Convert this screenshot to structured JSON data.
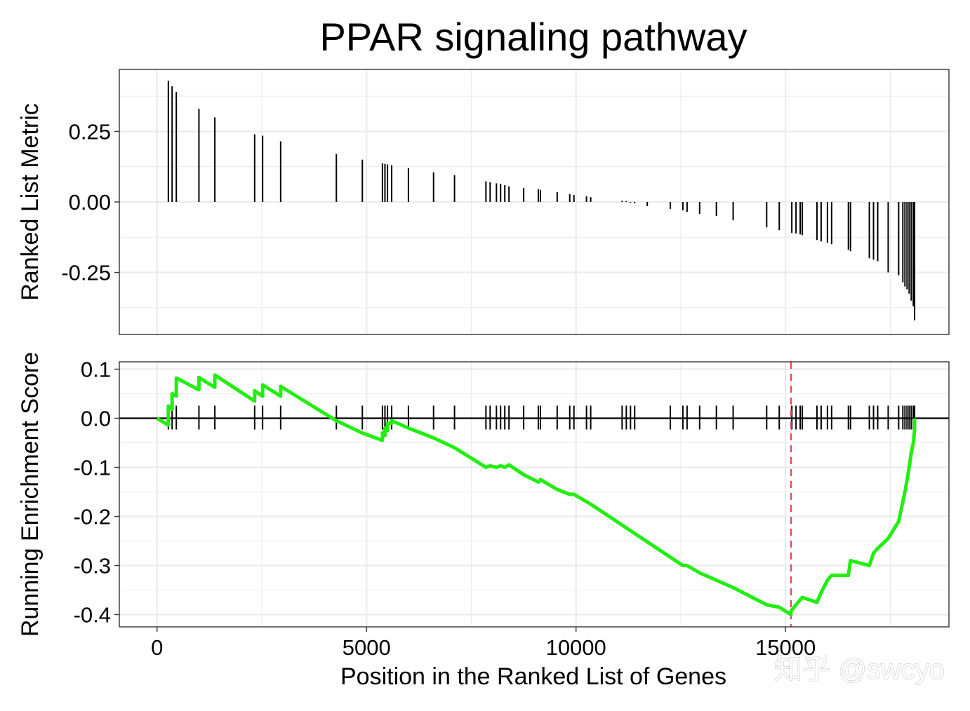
{
  "chart_data": [
    {
      "panel": "top",
      "type": "bar",
      "title": "PPAR signaling pathway",
      "xlabel": "",
      "ylabel": "Ranked List Metric",
      "xlim": [
        -900,
        18900
      ],
      "ylim": [
        -0.47,
        0.47
      ],
      "xticks": [
        0,
        5000,
        10000,
        15000
      ],
      "yticks": [
        0.25,
        0.0,
        -0.25
      ],
      "ytick_labels": [
        "0.25",
        "0.00",
        "-0.25"
      ],
      "grid": true,
      "x": [
        270,
        360,
        460,
        1000,
        1380,
        2330,
        2520,
        2950,
        4280,
        4900,
        5380,
        5440,
        5500,
        5600,
        6000,
        6600,
        7100,
        7850,
        7950,
        8100,
        8200,
        8300,
        8400,
        8750,
        9100,
        9150,
        9550,
        9850,
        9950,
        10250,
        10350,
        11100,
        11200,
        11300,
        11400,
        11700,
        12250,
        12550,
        12650,
        12950,
        13350,
        13750,
        14550,
        14850,
        15150,
        15250,
        15350,
        15400,
        15750,
        15850,
        16000,
        16100,
        16500,
        16550,
        17000,
        17100,
        17200,
        17450,
        17700,
        17800,
        17850,
        17900,
        17950,
        18000,
        18050,
        18080
      ],
      "values": [
        0.43,
        0.41,
        0.39,
        0.33,
        0.3,
        0.24,
        0.235,
        0.215,
        0.17,
        0.15,
        0.137,
        0.135,
        0.133,
        0.13,
        0.12,
        0.105,
        0.095,
        0.073,
        0.07,
        0.066,
        0.064,
        0.06,
        0.055,
        0.05,
        0.045,
        0.043,
        0.035,
        0.028,
        0.025,
        0.02,
        0.017,
        0.004,
        0.003,
        -0.003,
        -0.005,
        -0.015,
        -0.025,
        -0.03,
        -0.035,
        -0.042,
        -0.05,
        -0.065,
        -0.09,
        -0.1,
        -0.11,
        -0.112,
        -0.115,
        -0.118,
        -0.135,
        -0.14,
        -0.145,
        -0.15,
        -0.17,
        -0.175,
        -0.2,
        -0.205,
        -0.21,
        -0.25,
        -0.26,
        -0.285,
        -0.3,
        -0.31,
        -0.325,
        -0.35,
        -0.37,
        -0.42
      ]
    },
    {
      "panel": "bottom",
      "type": "line",
      "xlabel": "Position in the Ranked List of Genes",
      "ylabel": "Running Enrichment Score",
      "xlim": [
        -900,
        18900
      ],
      "ylim": [
        -0.425,
        0.115
      ],
      "xticks": [
        0,
        5000,
        10000,
        15000
      ],
      "xtick_labels": [
        "0",
        "5000",
        "10000",
        "15000"
      ],
      "yticks": [
        0.1,
        0.0,
        -0.1,
        -0.2,
        -0.3,
        -0.4
      ],
      "ytick_labels": [
        "0.1",
        "0.0",
        "-0.1",
        "-0.2",
        "-0.3",
        "-0.4"
      ],
      "grid": true,
      "line_color": "#22ee11",
      "zero_line_color": "#000000",
      "max_deviation_x": 15130,
      "max_deviation_color": "#e8474c",
      "series": [
        {
          "x": [
            0,
            270,
            270,
            360,
            360,
            460,
            460,
            1000,
            1000,
            1380,
            1380,
            2330,
            2330,
            2520,
            2520,
            2950,
            2950,
            4280,
            4900,
            5380,
            5380,
            5440,
            5440,
            5500,
            5500,
            5600,
            5600,
            6000,
            6600,
            7100,
            7850,
            7950,
            8100,
            8200,
            8300,
            8400,
            8750,
            9100,
            9150,
            9550,
            9850,
            9950,
            10250,
            10350,
            12550,
            12650,
            12950,
            13350,
            13750,
            14550,
            14850,
            15130,
            15130,
            15250,
            15350,
            15400,
            15750,
            15850,
            16000,
            16100,
            16500,
            16550,
            17000,
            17100,
            17200,
            17450,
            17700,
            17800,
            17850,
            17900,
            17950,
            18000,
            18050,
            18080,
            18080
          ],
          "values": [
            0.0,
            -0.014,
            0.025,
            0.018,
            0.05,
            0.045,
            0.082,
            0.058,
            0.083,
            0.063,
            0.088,
            0.035,
            0.056,
            0.045,
            0.068,
            0.045,
            0.065,
            -0.005,
            -0.03,
            -0.045,
            -0.03,
            -0.035,
            -0.02,
            -0.025,
            -0.01,
            -0.01,
            -0.005,
            -0.02,
            -0.04,
            -0.06,
            -0.1,
            -0.097,
            -0.1,
            -0.097,
            -0.1,
            -0.095,
            -0.115,
            -0.13,
            -0.125,
            -0.145,
            -0.155,
            -0.155,
            -0.17,
            -0.175,
            -0.3,
            -0.3,
            -0.315,
            -0.33,
            -0.345,
            -0.38,
            -0.385,
            -0.4,
            -0.393,
            -0.38,
            -0.37,
            -0.365,
            -0.375,
            -0.355,
            -0.33,
            -0.32,
            -0.32,
            -0.29,
            -0.3,
            -0.275,
            -0.265,
            -0.245,
            -0.21,
            -0.17,
            -0.15,
            -0.125,
            -0.1,
            -0.07,
            -0.05,
            -0.025,
            0.0
          ]
        }
      ],
      "gene_hits": [
        270,
        360,
        460,
        1000,
        1380,
        2330,
        2520,
        2950,
        4280,
        4900,
        5380,
        5440,
        5500,
        5600,
        6000,
        6600,
        7100,
        7850,
        7950,
        8100,
        8200,
        8300,
        8400,
        8750,
        9100,
        9150,
        9550,
        9850,
        9950,
        10250,
        10350,
        11100,
        11200,
        11300,
        11400,
        12250,
        12550,
        12650,
        12950,
        13350,
        13750,
        14550,
        14850,
        15150,
        15250,
        15350,
        15400,
        15750,
        15850,
        16000,
        16100,
        16500,
        16550,
        17000,
        17100,
        17200,
        17450,
        17700,
        17800,
        17850,
        17900,
        17950,
        18000,
        18050,
        18080
      ]
    }
  ],
  "watermark": "知乎 @swcyo"
}
